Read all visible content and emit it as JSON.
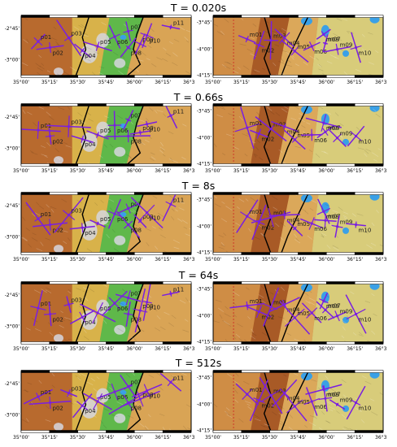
{
  "figure": {
    "panel_titles": [
      "T = 0.020s",
      "T = 0.66s",
      "T = 8s",
      "T = 64s",
      "T = 512s"
    ],
    "left_map": {
      "x_ticks": [
        "35°00'",
        "35°15'",
        "35°30'",
        "35°45'",
        "36°00'",
        "36°15'",
        "36°30'"
      ],
      "y_ticks": [
        "-2°45'",
        "-3°00'"
      ],
      "stations": [
        "p01",
        "p02",
        "p03",
        "p04",
        "p05",
        "p06",
        "p07",
        "p08",
        "p09",
        "p10",
        "p11"
      ]
    },
    "right_map": {
      "x_ticks": [
        "35°00'",
        "35°15'",
        "35°30'",
        "35°45'",
        "36°00'",
        "36°15'",
        "36°30'"
      ],
      "y_ticks": [
        "-3°45'",
        "-4°00'",
        "-4°15'"
      ],
      "stations": [
        "m01",
        "m02",
        "m03",
        "m04",
        "m05",
        "m06",
        "m07",
        "m08",
        "m09",
        "m10"
      ]
    },
    "colors": {
      "arrow": "#7a1fe0",
      "lake": "#3aa0e6",
      "fault": "#000000"
    }
  }
}
